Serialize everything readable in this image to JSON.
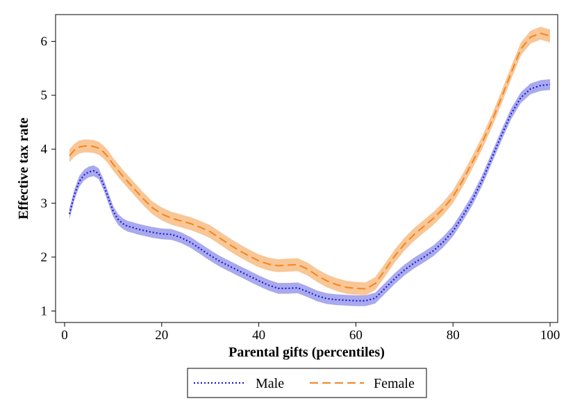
{
  "chart_data": {
    "type": "line",
    "xlabel": "Parental gifts (percentiles)",
    "ylabel": "Effective tax rate",
    "xlim": [
      0,
      101
    ],
    "ylim": [
      0.9,
      6.5
    ],
    "x_ticks": [
      0,
      20,
      40,
      60,
      80,
      100
    ],
    "y_ticks": [
      1,
      2,
      3,
      4,
      5,
      6
    ],
    "grid": false,
    "legend_placement": "bottom-center",
    "confidence_band": true,
    "series": [
      {
        "name": "Male",
        "style": "dotted",
        "color": "#1a1ad6",
        "band_color": "#a9a9ee",
        "x": [
          1,
          2,
          3,
          4,
          5,
          6,
          7,
          8,
          9,
          10,
          11,
          12,
          13,
          14,
          15,
          16,
          18,
          20,
          22,
          24,
          26,
          28,
          30,
          32,
          34,
          36,
          38,
          40,
          42,
          44,
          46,
          48,
          50,
          52,
          54,
          56,
          58,
          60,
          62,
          64,
          66,
          68,
          70,
          72,
          74,
          76,
          78,
          80,
          82,
          84,
          86,
          88,
          90,
          92,
          94,
          96,
          98,
          100
        ],
        "values": [
          2.8,
          3.15,
          3.4,
          3.52,
          3.58,
          3.6,
          3.55,
          3.35,
          3.1,
          2.85,
          2.7,
          2.62,
          2.57,
          2.55,
          2.52,
          2.5,
          2.46,
          2.43,
          2.42,
          2.36,
          2.27,
          2.15,
          2.03,
          1.92,
          1.83,
          1.74,
          1.65,
          1.56,
          1.48,
          1.42,
          1.42,
          1.43,
          1.36,
          1.28,
          1.23,
          1.21,
          1.2,
          1.19,
          1.19,
          1.24,
          1.42,
          1.6,
          1.76,
          1.89,
          2.0,
          2.12,
          2.28,
          2.48,
          2.76,
          3.06,
          3.42,
          3.84,
          4.26,
          4.66,
          4.96,
          5.12,
          5.18,
          5.2
        ],
        "band_halfwidth": 0.1
      },
      {
        "name": "Female",
        "style": "dashed",
        "color": "#f28521",
        "band_color": "#f9c696",
        "x": [
          1,
          2,
          3,
          4,
          5,
          6,
          7,
          8,
          9,
          10,
          12,
          14,
          16,
          18,
          20,
          22,
          24,
          26,
          28,
          30,
          32,
          34,
          36,
          38,
          40,
          42,
          44,
          46,
          48,
          50,
          52,
          54,
          56,
          58,
          60,
          62,
          64,
          66,
          68,
          70,
          72,
          74,
          76,
          78,
          80,
          82,
          84,
          86,
          88,
          90,
          92,
          94,
          96,
          98,
          100
        ],
        "values": [
          3.88,
          3.98,
          4.04,
          4.06,
          4.06,
          4.05,
          4.02,
          3.95,
          3.85,
          3.72,
          3.5,
          3.3,
          3.1,
          2.92,
          2.8,
          2.72,
          2.67,
          2.62,
          2.55,
          2.47,
          2.35,
          2.23,
          2.12,
          2.02,
          1.93,
          1.87,
          1.84,
          1.85,
          1.86,
          1.78,
          1.66,
          1.56,
          1.49,
          1.44,
          1.42,
          1.41,
          1.51,
          1.76,
          2.02,
          2.24,
          2.42,
          2.57,
          2.72,
          2.9,
          3.12,
          3.42,
          3.76,
          4.12,
          4.52,
          4.96,
          5.42,
          5.86,
          6.08,
          6.15,
          6.1
        ],
        "band_halfwidth": 0.12
      }
    ]
  }
}
